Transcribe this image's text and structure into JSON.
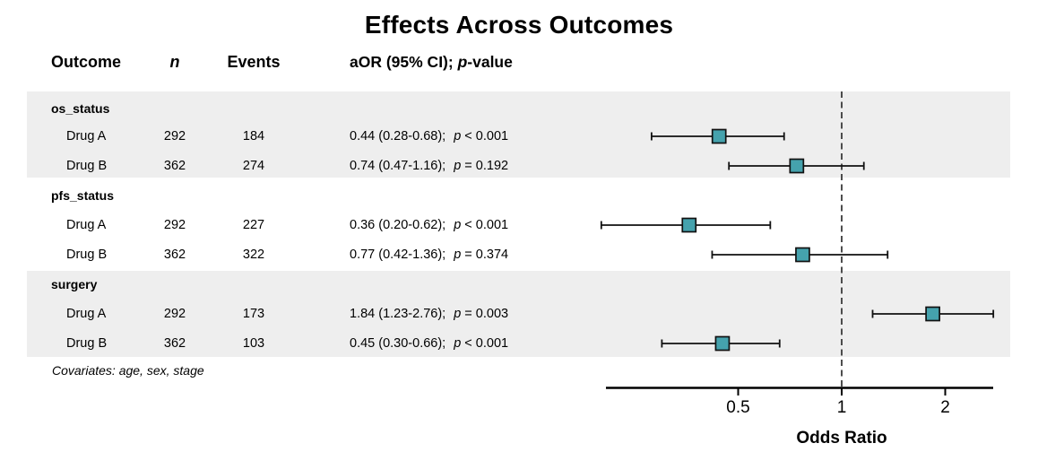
{
  "title": "Effects Across Outcomes",
  "header": {
    "outcome": "Outcome",
    "n": "n",
    "events": "Events",
    "aor_prefix": "aOR (95% CI); ",
    "p_italic": "p",
    "aor_suffix": "-value"
  },
  "labels": {
    "p": "p"
  },
  "footnote": "Covariates: age, sex, stage",
  "groups": [
    {
      "name": "os_status",
      "rows": [
        {
          "label": "Drug A",
          "n": "292",
          "events": "184",
          "ci": "0.44 (0.28-0.68);",
          "p": "< 0.001"
        },
        {
          "label": "Drug B",
          "n": "362",
          "events": "274",
          "ci": "0.74 (0.47-1.16);",
          "p": "= 0.192"
        }
      ]
    },
    {
      "name": "pfs_status",
      "rows": [
        {
          "label": "Drug A",
          "n": "292",
          "events": "227",
          "ci": "0.36 (0.20-0.62);",
          "p": "< 0.001"
        },
        {
          "label": "Drug B",
          "n": "362",
          "events": "322",
          "ci": "0.77 (0.42-1.36);",
          "p": "= 0.374"
        }
      ]
    },
    {
      "name": "surgery",
      "rows": [
        {
          "label": "Drug A",
          "n": "292",
          "events": "173",
          "ci": "1.84 (1.23-2.76);",
          "p": "= 0.003"
        },
        {
          "label": "Drug B",
          "n": "362",
          "events": "103",
          "ci": "0.45 (0.30-0.66);",
          "p": "< 0.001"
        }
      ]
    }
  ],
  "chart_data": {
    "type": "forest",
    "title": "Effects Across Outcomes",
    "xlabel": "Odds Ratio",
    "x_scale": "log",
    "x_ticks": [
      0.5,
      1,
      2
    ],
    "x_range": [
      0.2,
      2.8
    ],
    "reference_line": 1,
    "legend": "none",
    "grid": false,
    "groups": [
      "os_status",
      "pfs_status",
      "surgery"
    ],
    "series": [
      {
        "group": "os_status",
        "label": "Drug A",
        "n": 292,
        "events": 184,
        "or": 0.44,
        "ci_low": 0.28,
        "ci_high": 0.68,
        "p": "< 0.001"
      },
      {
        "group": "os_status",
        "label": "Drug B",
        "n": 362,
        "events": 274,
        "or": 0.74,
        "ci_low": 0.47,
        "ci_high": 1.16,
        "p": "= 0.192"
      },
      {
        "group": "pfs_status",
        "label": "Drug A",
        "n": 292,
        "events": 227,
        "or": 0.36,
        "ci_low": 0.2,
        "ci_high": 0.62,
        "p": "< 0.001"
      },
      {
        "group": "pfs_status",
        "label": "Drug B",
        "n": 362,
        "events": 322,
        "or": 0.77,
        "ci_low": 0.42,
        "ci_high": 1.36,
        "p": "= 0.374"
      },
      {
        "group": "surgery",
        "label": "Drug A",
        "n": 292,
        "events": 173,
        "or": 1.84,
        "ci_low": 1.23,
        "ci_high": 2.76,
        "p": "= 0.003"
      },
      {
        "group": "surgery",
        "label": "Drug B",
        "n": 362,
        "events": 103,
        "or": 0.45,
        "ci_low": 0.3,
        "ci_high": 0.66,
        "p": "< 0.001"
      }
    ],
    "covariates_note": "Covariates: age, sex, stage"
  },
  "colors": {
    "marker_fill": "#45A2AD",
    "marker_stroke": "#111111",
    "band": "#EEEEEE",
    "axis": "#000000",
    "ref_line": "#3A3A3A"
  }
}
